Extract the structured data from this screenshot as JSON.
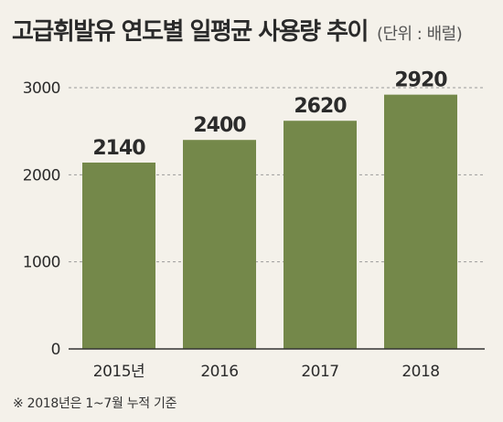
{
  "title": "고급휘발유 연도별 일평균 사용량 추이",
  "unit_note": "(단위 : 배럴)",
  "footnote": "※ 2018년은 1~7월 누적 기준",
  "colors": {
    "bar": "#74884a",
    "background": "#f4f1ea",
    "axis": "#333333",
    "grid": "#9a9a9a",
    "text": "#2b2b2b"
  },
  "chart_data": {
    "type": "bar",
    "categories": [
      "2015년",
      "2016",
      "2017",
      "2018"
    ],
    "values": [
      2140,
      2400,
      2620,
      2920
    ],
    "data_labels": [
      "2140",
      "2400",
      "2620",
      "2920"
    ],
    "y_ticks": [
      0,
      1000,
      2000,
      3000
    ],
    "ylim": [
      0,
      3000
    ],
    "grid": "dashed horizontal at ticks",
    "legend": "none",
    "title": "고급휘발유 연도별 일평균 사용량 추이",
    "xlabel": "",
    "ylabel": ""
  }
}
